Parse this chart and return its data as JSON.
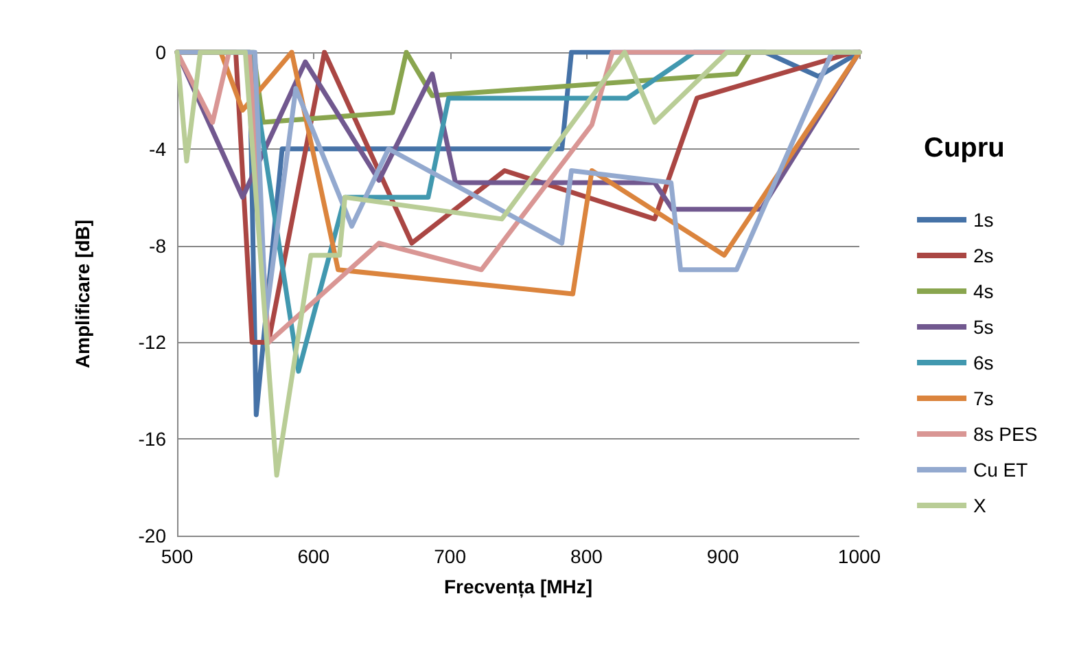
{
  "chart_data": {
    "type": "line",
    "xlabel": "Frecvența [MHz]",
    "ylabel": "Amplificare [dB]",
    "legend_title": "Cupru",
    "legend": "right",
    "grid": "y",
    "marker": "none",
    "line_style": "solid",
    "xlim": [
      500,
      1000
    ],
    "xticks": [
      500,
      600,
      700,
      800,
      900,
      1000
    ],
    "ylim": [
      -20,
      0
    ],
    "yticks": [
      -20,
      -16,
      -12,
      -8,
      -4,
      0
    ],
    "series": [
      {
        "name": "1s",
        "color": "#4572a7",
        "x": [
          500,
          553,
          558,
          577,
          782,
          789,
          931,
          970,
          1000
        ],
        "values": [
          0,
          0,
          -15,
          -4,
          -4,
          0,
          0,
          -1,
          0
        ]
      },
      {
        "name": "2s",
        "color": "#aa4643",
        "x": [
          500,
          543,
          555,
          567,
          608,
          672,
          740,
          850,
          881,
          996,
          1000
        ],
        "values": [
          0,
          0,
          -12,
          -12,
          0,
          -7.9,
          -4.9,
          -6.9,
          -1.9,
          0,
          0
        ]
      },
      {
        "name": "4s",
        "color": "#89a54e",
        "x": [
          500,
          556,
          563,
          658,
          668,
          687,
          910,
          920,
          1000
        ],
        "values": [
          0,
          0,
          -2.9,
          -2.5,
          0,
          -1.8,
          -0.9,
          0,
          0
        ]
      },
      {
        "name": "5s",
        "color": "#71588f",
        "x": [
          500,
          548,
          594,
          648,
          687,
          704,
          850,
          863,
          928,
          1000
        ],
        "values": [
          0,
          -6,
          -0.4,
          -5.3,
          -0.9,
          -5.4,
          -5.4,
          -6.5,
          -6.5,
          0
        ]
      },
      {
        "name": "6s",
        "color": "#4198af",
        "x": [
          500,
          553,
          589,
          623,
          684,
          699,
          830,
          869,
          879,
          1000
        ],
        "values": [
          0,
          0,
          -13.2,
          -6,
          -6,
          -1.9,
          -1.9,
          -0.4,
          0,
          0
        ]
      },
      {
        "name": "7s",
        "color": "#db843d",
        "x": [
          500,
          532,
          548,
          584,
          618,
          790,
          804,
          901,
          1000
        ],
        "values": [
          0,
          0,
          -2.4,
          0,
          -9,
          -10,
          -4.9,
          -8.4,
          0
        ]
      },
      {
        "name": "8s PES",
        "color": "#d99694",
        "x": [
          500,
          526,
          538,
          553,
          567,
          648,
          723,
          804,
          819,
          1000
        ],
        "values": [
          0,
          -2.9,
          0,
          0,
          -12,
          -7.9,
          -9,
          -3,
          0,
          0
        ]
      },
      {
        "name": "Cu ET",
        "color": "#93a9cf",
        "x": [
          500,
          557,
          565,
          587,
          628,
          655,
          782,
          789,
          862,
          869,
          910,
          980,
          1000
        ],
        "values": [
          0,
          0,
          -11,
          -1.5,
          -7.2,
          -4,
          -7.9,
          -4.9,
          -5.4,
          -9,
          -9,
          0,
          0
        ]
      },
      {
        "name": "X",
        "color": "#b9cd96",
        "x": [
          500,
          507,
          517,
          550,
          573,
          598,
          619,
          623,
          738,
          828,
          850,
          903,
          1000
        ],
        "values": [
          0,
          -4.5,
          0,
          0,
          -17.5,
          -8.4,
          -8.4,
          -6,
          -6.9,
          0,
          -2.9,
          0,
          0
        ]
      }
    ]
  }
}
